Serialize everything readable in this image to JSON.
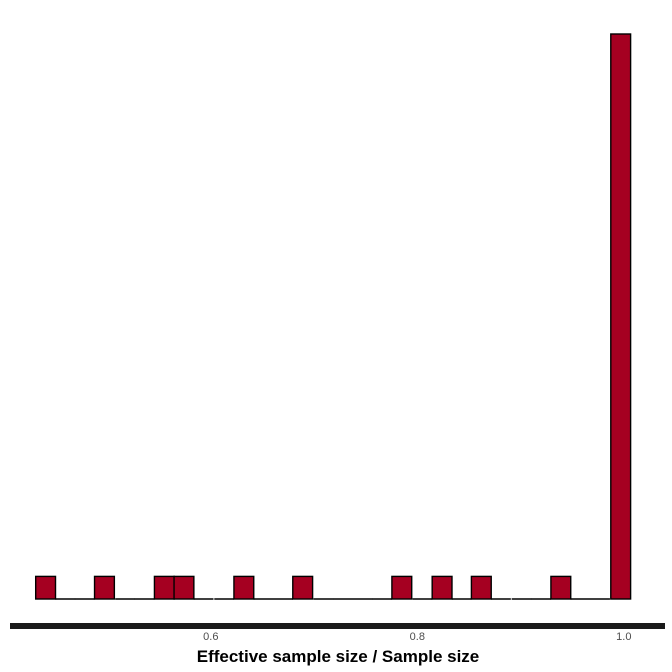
{
  "chart_data": {
    "type": "bar",
    "subtype": "histogram",
    "xlabel": "Effective sample size / Sample size",
    "ylabel": "",
    "title": "",
    "x_ticks": [
      0.6,
      0.8,
      1.0
    ],
    "x_tick_labels": [
      "0.6",
      "0.8",
      "1.0"
    ],
    "xlim": [
      0.415,
      1.04
    ],
    "bin_width": 0.0192,
    "bins": [
      {
        "x": 0.44,
        "count": 1
      },
      {
        "x": 0.459,
        "count": 0
      },
      {
        "x": 0.478,
        "count": 0
      },
      {
        "x": 0.497,
        "count": 1
      },
      {
        "x": 0.517,
        "count": 0
      },
      {
        "x": 0.536,
        "count": 0
      },
      {
        "x": 0.555,
        "count": 1
      },
      {
        "x": 0.574,
        "count": 1
      },
      {
        "x": 0.593,
        "count": 0
      },
      {
        "x": 0.613,
        "count": 0
      },
      {
        "x": 0.632,
        "count": 1
      },
      {
        "x": 0.651,
        "count": 0
      },
      {
        "x": 0.67,
        "count": 0
      },
      {
        "x": 0.689,
        "count": 1
      },
      {
        "x": 0.709,
        "count": 0
      },
      {
        "x": 0.728,
        "count": 0
      },
      {
        "x": 0.747,
        "count": 0
      },
      {
        "x": 0.766,
        "count": 0
      },
      {
        "x": 0.785,
        "count": 1
      },
      {
        "x": 0.805,
        "count": 0
      },
      {
        "x": 0.824,
        "count": 1
      },
      {
        "x": 0.843,
        "count": 0
      },
      {
        "x": 0.862,
        "count": 1
      },
      {
        "x": 0.881,
        "count": 0
      },
      {
        "x": 0.901,
        "count": 0
      },
      {
        "x": 0.92,
        "count": 0
      },
      {
        "x": 0.939,
        "count": 1
      },
      {
        "x": 0.958,
        "count": 0
      },
      {
        "x": 0.977,
        "count": 0
      },
      {
        "x": 0.997,
        "count": 25
      }
    ],
    "grid": false,
    "legend": "none",
    "colors": {
      "fill": "#a50021",
      "stroke": "#000000",
      "axis": "#1a1a1a"
    }
  }
}
